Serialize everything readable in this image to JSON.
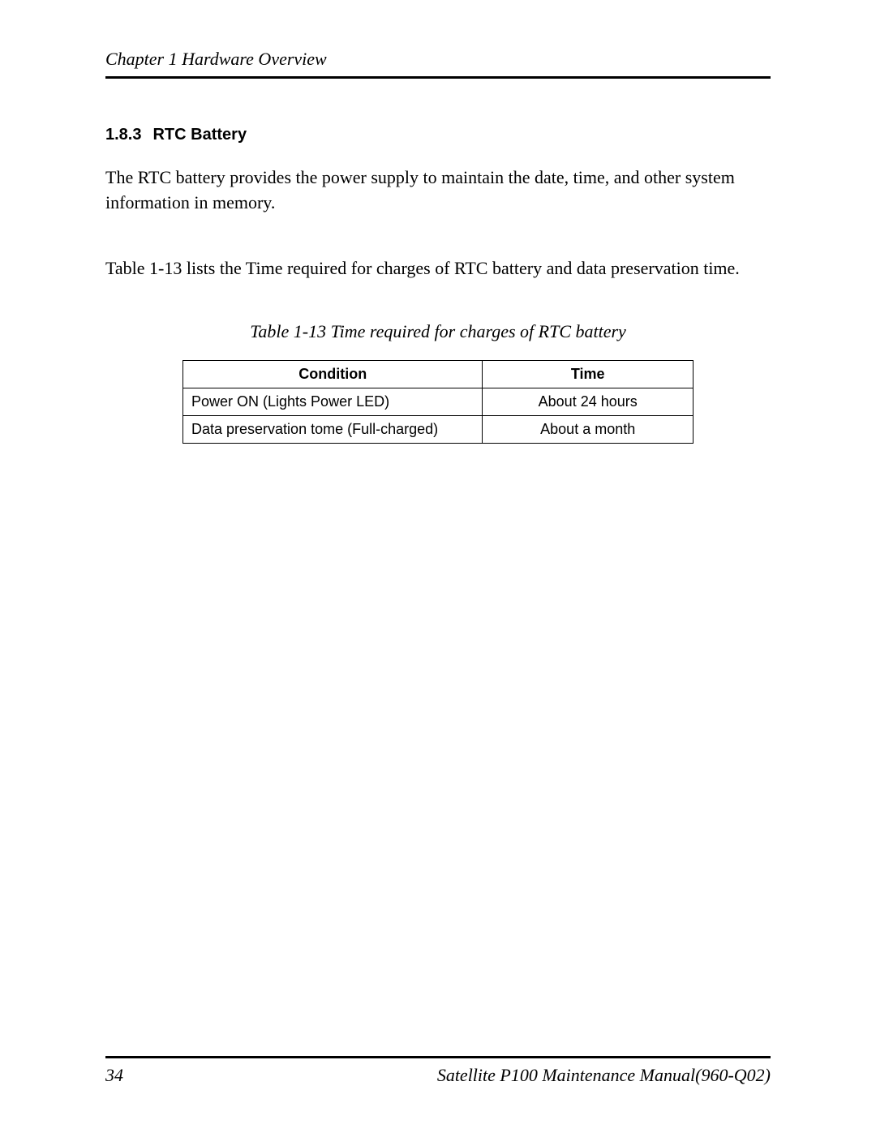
{
  "header": {
    "text": "Chapter 1 Hardware Overview"
  },
  "section": {
    "number": "1.8.3",
    "title": "RTC Battery"
  },
  "paragraphs": {
    "p1": "The RTC battery provides the power supply to maintain the date, time, and other system information in memory.",
    "p2": "Table 1-13 lists the Time required for charges of RTC battery and data preservation time."
  },
  "table": {
    "caption": "Table 1-13 Time required for charges of RTC battery",
    "columns": [
      "Condition",
      "Time"
    ],
    "rows": [
      [
        "Power ON   (Lights Power LED)",
        "About 24 hours"
      ],
      [
        "Data preservation tome (Full-charged)",
        "About a month"
      ]
    ],
    "column_widths": [
      "370px",
      "260px"
    ],
    "border_color": "#000000",
    "header_font_weight": "bold",
    "font_family": "Arial",
    "font_size": 18
  },
  "footer": {
    "page_number": "34",
    "doc_title": "Satellite P100 Maintenance Manual(960-Q02)"
  },
  "colors": {
    "text": "#000000",
    "background": "#ffffff",
    "rule": "#000000"
  }
}
